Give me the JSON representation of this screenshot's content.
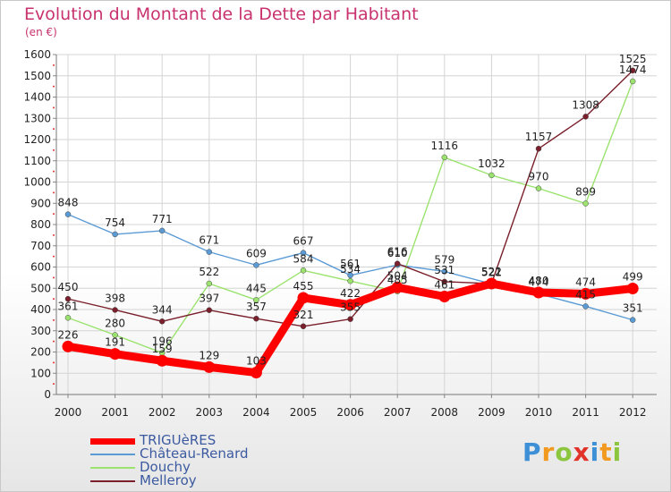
{
  "chart_data": {
    "type": "line",
    "title": "Evolution du Montant de la Dette par Habitant",
    "subtitle": "(en €)",
    "xlabel": "",
    "ylabel": "",
    "ylim": [
      0,
      1600
    ],
    "yticks": [
      0,
      100,
      200,
      300,
      400,
      500,
      600,
      700,
      800,
      900,
      1000,
      1100,
      1200,
      1300,
      1400,
      1500,
      1600
    ],
    "grid": true,
    "legend_placement": "bottom-left",
    "categories": [
      "2000",
      "2001",
      "2002",
      "2003",
      "2004",
      "2005",
      "2006",
      "2007",
      "2008",
      "2009",
      "2010",
      "2011",
      "2012"
    ],
    "series": [
      {
        "name": "TRIGUèRES",
        "color": "#ff0000",
        "emphasis": true,
        "values": [
          226,
          191,
          159,
          129,
          103,
          455,
          422,
          504,
          461,
          522,
          480,
          474,
          499
        ]
      },
      {
        "name": "Château-Renard",
        "color": "#5b9bd5",
        "values": [
          848,
          754,
          771,
          671,
          609,
          667,
          561,
          610,
          579,
          521,
          474,
          415,
          351
        ]
      },
      {
        "name": "Douchy",
        "color": "#9be36e",
        "values": [
          361,
          280,
          196,
          522,
          445,
          584,
          534,
          485,
          1116,
          1032,
          970,
          899,
          1474
        ]
      },
      {
        "name": "Melleroy",
        "color": "#7a1f2b",
        "values": [
          450,
          398,
          344,
          397,
          357,
          321,
          355,
          616,
          531,
          522,
          1157,
          1308,
          1525
        ]
      }
    ]
  },
  "logo": {
    "letters": [
      "P",
      "r",
      "o",
      "x",
      "i",
      "t",
      "i"
    ],
    "colors": [
      "#3d8fd6",
      "#f29a1f",
      "#8cc63f",
      "#e2332b",
      "#3d8fd6",
      "#f29a1f",
      "#8cc63f"
    ]
  }
}
